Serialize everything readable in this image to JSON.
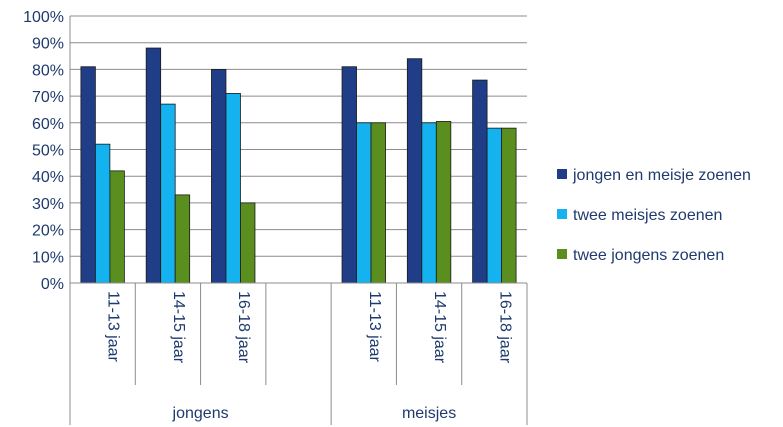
{
  "chart_data": {
    "type": "bar",
    "title": "",
    "xlabel": "",
    "ylabel": "",
    "ylim": [
      0,
      100
    ],
    "y_tick_labels": [
      "0%",
      "10%",
      "20%",
      "30%",
      "40%",
      "50%",
      "60%",
      "70%",
      "80%",
      "90%",
      "100%"
    ],
    "grid": true,
    "legend_position": "right",
    "groups": [
      {
        "name": "jongens",
        "categories": [
          "11-13 jaar",
          "14-15 jaar",
          "16-18 jaar",
          ""
        ]
      },
      {
        "name": "meisjes",
        "categories": [
          "11-13 jaar",
          "14-15 jaar",
          "16-18 jaar"
        ]
      }
    ],
    "categories": [
      "11-13 jaar",
      "14-15 jaar",
      "16-18 jaar",
      "",
      "11-13 jaar",
      "14-15 jaar",
      "16-18 jaar"
    ],
    "series": [
      {
        "name": "jongen en meisje zoenen",
        "color": "#203d87",
        "values": [
          81,
          88,
          80,
          null,
          81,
          84,
          76
        ]
      },
      {
        "name": "twee meisjes zoenen",
        "color": "#14b3ef",
        "values": [
          52,
          67,
          71,
          null,
          60,
          60,
          58
        ]
      },
      {
        "name": "twee jongens zoenen",
        "color": "#5a8f1f",
        "values": [
          42,
          33,
          30,
          null,
          60,
          60.5,
          58
        ]
      }
    ]
  }
}
